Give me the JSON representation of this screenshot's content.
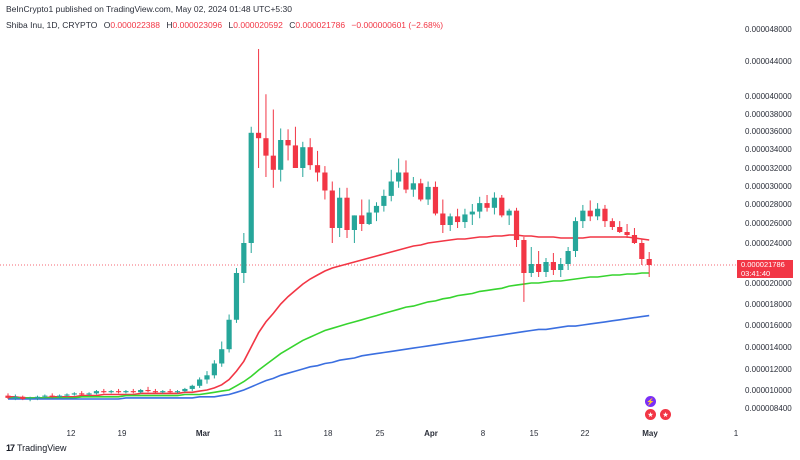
{
  "header": {
    "publisher": "BeInCrypto1 published on TradingView.com, May 02, 2024 01:48 UTC+5:30"
  },
  "symbol": {
    "name": "Shiba Inu, 1D, CRYPTO",
    "ohlc": {
      "o_label": "O",
      "o": "0.000022388",
      "h_label": "H",
      "h": "0.000023096",
      "l_label": "L",
      "l": "0.000020592",
      "c_label": "C",
      "c": "0.000021786",
      "change": "−0.000000601 (−2.68%)"
    }
  },
  "price_tag": {
    "price": "0.000021786",
    "countdown": "03:41:40"
  },
  "footer": {
    "brand": "TradingView"
  },
  "colors": {
    "up": "#26a69a",
    "down": "#f23645",
    "ma_red": "#f23645",
    "ma_green": "#37d42f",
    "ma_blue": "#3b6fe0"
  },
  "chart_data": {
    "type": "candlestick",
    "y_axis": {
      "labels": [
        "0.000048000",
        "0.000044000",
        "0.000040000",
        "0.000038000",
        "0.000036000",
        "0.000034000",
        "0.000032000",
        "0.000030000",
        "0.000028000",
        "0.000026000",
        "0.000024000",
        "0.000022000",
        "0.000020000",
        "0.000018000",
        "0.000016000",
        "0.000014000",
        "0.000012000",
        "0.000010000",
        "0.000008400"
      ]
    },
    "x_axis": {
      "labels": [
        {
          "text": "12",
          "bold": false
        },
        {
          "text": "19",
          "bold": false
        },
        {
          "text": "Mar",
          "bold": true
        },
        {
          "text": "11",
          "bold": false
        },
        {
          "text": "18",
          "bold": false
        },
        {
          "text": "25",
          "bold": false
        },
        {
          "text": "Apr",
          "bold": true
        },
        {
          "text": "8",
          "bold": false
        },
        {
          "text": "15",
          "bold": false
        },
        {
          "text": "22",
          "bold": false
        },
        {
          "text": "May",
          "bold": true
        },
        {
          "text": "1",
          "bold": false
        }
      ]
    },
    "candles": [
      {
        "o": 9.5e-06,
        "h": 9.7e-06,
        "l": 9.2e-06,
        "c": 9.3e-06
      },
      {
        "o": 9.3e-06,
        "h": 9.6e-06,
        "l": 9.1e-06,
        "c": 9.4e-06
      },
      {
        "o": 9.4e-06,
        "h": 9.5e-06,
        "l": 9.1e-06,
        "c": 9.2e-06
      },
      {
        "o": 9.2e-06,
        "h": 9.4e-06,
        "l": 9e-06,
        "c": 9.3e-06
      },
      {
        "o": 9.3e-06,
        "h": 9.5e-06,
        "l": 9.1e-06,
        "c": 9.4e-06
      },
      {
        "o": 9.4e-06,
        "h": 9.6e-06,
        "l": 9.2e-06,
        "c": 9.5e-06
      },
      {
        "o": 9.5e-06,
        "h": 9.7e-06,
        "l": 9.3e-06,
        "c": 9.4e-06
      },
      {
        "o": 9.4e-06,
        "h": 9.6e-06,
        "l": 9.3e-06,
        "c": 9.5e-06
      },
      {
        "o": 9.5e-06,
        "h": 9.7e-06,
        "l": 9.4e-06,
        "c": 9.6e-06
      },
      {
        "o": 9.6e-06,
        "h": 9.8e-06,
        "l": 9.5e-06,
        "c": 9.7e-06
      },
      {
        "o": 9.7e-06,
        "h": 9.9e-06,
        "l": 9.5e-06,
        "c": 9.6e-06
      },
      {
        "o": 9.6e-06,
        "h": 9.8e-06,
        "l": 9.5e-06,
        "c": 9.7e-06
      },
      {
        "o": 9.7e-06,
        "h": 1e-05,
        "l": 9.6e-06,
        "c": 9.9e-06
      },
      {
        "o": 9.9e-06,
        "h": 1.01e-05,
        "l": 9.7e-06,
        "c": 9.8e-06
      },
      {
        "o": 9.8e-06,
        "h": 1e-05,
        "l": 9.7e-06,
        "c": 9.9e-06
      },
      {
        "o": 9.9e-06,
        "h": 1.01e-05,
        "l": 9.7e-06,
        "c": 9.8e-06
      },
      {
        "o": 9.8e-06,
        "h": 1e-05,
        "l": 9.7e-06,
        "c": 9.9e-06
      },
      {
        "o": 9.9e-06,
        "h": 1.01e-05,
        "l": 9.7e-06,
        "c": 9.8e-06
      },
      {
        "o": 9.8e-06,
        "h": 1.01e-05,
        "l": 9.7e-06,
        "c": 1e-05
      },
      {
        "o": 1e-05,
        "h": 1.03e-05,
        "l": 9.8e-06,
        "c": 9.9e-06
      },
      {
        "o": 9.9e-06,
        "h": 1.01e-05,
        "l": 9.7e-06,
        "c": 9.8e-06
      },
      {
        "o": 9.8e-06,
        "h": 1e-05,
        "l": 9.7e-06,
        "c": 9.9e-06
      },
      {
        "o": 9.9e-06,
        "h": 1.01e-05,
        "l": 9.7e-06,
        "c": 9.8e-06
      },
      {
        "o": 9.8e-06,
        "h": 1e-05,
        "l": 9.7e-06,
        "c": 9.9e-06
      },
      {
        "o": 9.9e-06,
        "h": 1.02e-05,
        "l": 9.8e-06,
        "c": 1.01e-05
      },
      {
        "o": 1.01e-05,
        "h": 1.05e-05,
        "l": 9.9e-06,
        "c": 1.04e-05
      },
      {
        "o": 1.04e-05,
        "h": 1.12e-05,
        "l": 1.02e-05,
        "c": 1.1e-05
      },
      {
        "o": 1.1e-05,
        "h": 1.18e-05,
        "l": 1.06e-05,
        "c": 1.14e-05
      },
      {
        "o": 1.14e-05,
        "h": 1.28e-05,
        "l": 1.11e-05,
        "c": 1.25e-05
      },
      {
        "o": 1.25e-05,
        "h": 1.45e-05,
        "l": 1.22e-05,
        "c": 1.38e-05
      },
      {
        "o": 1.38e-05,
        "h": 1.7e-05,
        "l": 1.35e-05,
        "c": 1.65e-05
      },
      {
        "o": 1.65e-05,
        "h": 2.15e-05,
        "l": 1.62e-05,
        "c": 2.1e-05
      },
      {
        "o": 2.1e-05,
        "h": 2.5e-05,
        "l": 2e-05,
        "c": 2.4e-05
      },
      {
        "o": 2.4e-05,
        "h": 3.65e-05,
        "l": 2.3e-05,
        "c": 3.58e-05
      },
      {
        "o": 3.58e-05,
        "h": 4.55e-05,
        "l": 3.2e-05,
        "c": 3.52e-05
      },
      {
        "o": 3.52e-05,
        "h": 4.02e-05,
        "l": 3.1e-05,
        "c": 3.33e-05
      },
      {
        "o": 3.33e-05,
        "h": 3.85e-05,
        "l": 2.98e-05,
        "c": 3.18e-05
      },
      {
        "o": 3.18e-05,
        "h": 3.63e-05,
        "l": 3.05e-05,
        "c": 3.5e-05
      },
      {
        "o": 3.5e-05,
        "h": 3.62e-05,
        "l": 3.28e-05,
        "c": 3.44e-05
      },
      {
        "o": 3.44e-05,
        "h": 3.65e-05,
        "l": 3.2e-05,
        "c": 3.2e-05
      },
      {
        "o": 3.2e-05,
        "h": 3.48e-05,
        "l": 3.1e-05,
        "c": 3.42e-05
      },
      {
        "o": 3.42e-05,
        "h": 3.52e-05,
        "l": 3.18e-05,
        "c": 3.23e-05
      },
      {
        "o": 3.23e-05,
        "h": 3.38e-05,
        "l": 3.05e-05,
        "c": 3.15e-05
      },
      {
        "o": 3.15e-05,
        "h": 3.22e-05,
        "l": 2.85e-05,
        "c": 2.95e-05
      },
      {
        "o": 2.95e-05,
        "h": 3.05e-05,
        "l": 2.4e-05,
        "c": 2.55e-05
      },
      {
        "o": 2.55e-05,
        "h": 2.98e-05,
        "l": 2.46e-05,
        "c": 2.87e-05
      },
      {
        "o": 2.87e-05,
        "h": 2.98e-05,
        "l": 2.45e-05,
        "c": 2.53e-05
      },
      {
        "o": 2.53e-05,
        "h": 2.68e-05,
        "l": 2.4e-05,
        "c": 2.68e-05
      },
      {
        "o": 2.68e-05,
        "h": 2.85e-05,
        "l": 2.52e-05,
        "c": 2.59e-05
      },
      {
        "o": 2.59e-05,
        "h": 2.85e-05,
        "l": 2.58e-05,
        "c": 2.71e-05
      },
      {
        "o": 2.71e-05,
        "h": 2.82e-05,
        "l": 2.62e-05,
        "c": 2.78e-05
      },
      {
        "o": 2.78e-05,
        "h": 2.96e-05,
        "l": 2.72e-05,
        "c": 2.89e-05
      },
      {
        "o": 2.89e-05,
        "h": 3.18e-05,
        "l": 2.83e-05,
        "c": 3.05e-05
      },
      {
        "o": 3.05e-05,
        "h": 3.3e-05,
        "l": 2.98e-05,
        "c": 3.15e-05
      },
      {
        "o": 3.15e-05,
        "h": 3.28e-05,
        "l": 2.92e-05,
        "c": 2.96e-05
      },
      {
        "o": 2.96e-05,
        "h": 3.1e-05,
        "l": 2.88e-05,
        "c": 3.03e-05
      },
      {
        "o": 3.03e-05,
        "h": 3.08e-05,
        "l": 2.83e-05,
        "c": 2.85e-05
      },
      {
        "o": 2.85e-05,
        "h": 3.05e-05,
        "l": 2.79e-05,
        "c": 2.99e-05
      },
      {
        "o": 2.99e-05,
        "h": 3.05e-05,
        "l": 2.68e-05,
        "c": 2.7e-05
      },
      {
        "o": 2.7e-05,
        "h": 2.85e-05,
        "l": 2.5e-05,
        "c": 2.58e-05
      },
      {
        "o": 2.58e-05,
        "h": 2.7e-05,
        "l": 2.52e-05,
        "c": 2.67e-05
      },
      {
        "o": 2.67e-05,
        "h": 2.75e-05,
        "l": 2.55e-05,
        "c": 2.61e-05
      },
      {
        "o": 2.61e-05,
        "h": 2.75e-05,
        "l": 2.55e-05,
        "c": 2.69e-05
      },
      {
        "o": 2.69e-05,
        "h": 2.8e-05,
        "l": 2.58e-05,
        "c": 2.72e-05
      },
      {
        "o": 2.72e-05,
        "h": 2.88e-05,
        "l": 2.65e-05,
        "c": 2.81e-05
      },
      {
        "o": 2.81e-05,
        "h": 2.9e-05,
        "l": 2.72e-05,
        "c": 2.76e-05
      },
      {
        "o": 2.76e-05,
        "h": 2.93e-05,
        "l": 2.69e-05,
        "c": 2.87e-05
      },
      {
        "o": 2.87e-05,
        "h": 2.9e-05,
        "l": 2.66e-05,
        "c": 2.68e-05
      },
      {
        "o": 2.68e-05,
        "h": 2.75e-05,
        "l": 2.58e-05,
        "c": 2.73e-05
      },
      {
        "o": 2.73e-05,
        "h": 2.76e-05,
        "l": 2.36e-05,
        "c": 2.43e-05
      },
      {
        "o": 2.43e-05,
        "h": 2.46e-05,
        "l": 1.82e-05,
        "c": 2.1e-05
      },
      {
        "o": 2.1e-05,
        "h": 2.36e-05,
        "l": 2.06e-05,
        "c": 2.19e-05
      },
      {
        "o": 2.19e-05,
        "h": 2.32e-05,
        "l": 2.06e-05,
        "c": 2.11e-05
      },
      {
        "o": 2.11e-05,
        "h": 2.25e-05,
        "l": 2.06e-05,
        "c": 2.21e-05
      },
      {
        "o": 2.21e-05,
        "h": 2.3e-05,
        "l": 2.08e-05,
        "c": 2.13e-05
      },
      {
        "o": 2.13e-05,
        "h": 2.25e-05,
        "l": 2.06e-05,
        "c": 2.19e-05
      },
      {
        "o": 2.19e-05,
        "h": 2.36e-05,
        "l": 2.13e-05,
        "c": 2.32e-05
      },
      {
        "o": 2.32e-05,
        "h": 2.66e-05,
        "l": 2.26e-05,
        "c": 2.62e-05
      },
      {
        "o": 2.62e-05,
        "h": 2.79e-05,
        "l": 2.55e-05,
        "c": 2.73e-05
      },
      {
        "o": 2.73e-05,
        "h": 2.84e-05,
        "l": 2.62e-05,
        "c": 2.67e-05
      },
      {
        "o": 2.67e-05,
        "h": 2.81e-05,
        "l": 2.63e-05,
        "c": 2.75e-05
      },
      {
        "o": 2.75e-05,
        "h": 2.79e-05,
        "l": 2.56e-05,
        "c": 2.62e-05
      },
      {
        "o": 2.62e-05,
        "h": 2.65e-05,
        "l": 2.53e-05,
        "c": 2.56e-05
      },
      {
        "o": 2.56e-05,
        "h": 2.62e-05,
        "l": 2.5e-05,
        "c": 2.51e-05
      },
      {
        "o": 2.51e-05,
        "h": 2.59e-05,
        "l": 2.45e-05,
        "c": 2.48e-05
      },
      {
        "o": 2.48e-05,
        "h": 2.55e-05,
        "l": 2.39e-05,
        "c": 2.4e-05
      },
      {
        "o": 2.4e-05,
        "h": 2.44e-05,
        "l": 2.18e-05,
        "c": 2.24e-05
      },
      {
        "o": 2.24e-05,
        "h": 2.31e-05,
        "l": 2.06e-05,
        "c": 2.18e-05
      }
    ],
    "ma_series": [
      {
        "color_key": "ma_red",
        "values": [
          9.4e-06,
          9.4e-06,
          9.3e-06,
          9.3e-06,
          9.3e-06,
          9.3e-06,
          9.4e-06,
          9.4e-06,
          9.4e-06,
          9.4e-06,
          9.5e-06,
          9.5e-06,
          9.5e-06,
          9.6e-06,
          9.6e-06,
          9.6e-06,
          9.6e-06,
          9.6e-06,
          9.7e-06,
          9.7e-06,
          9.7e-06,
          9.7e-06,
          9.7e-06,
          9.7e-06,
          9.8e-06,
          9.8e-06,
          9.9e-06,
          1e-05,
          1.02e-05,
          1.05e-05,
          1.1e-05,
          1.18e-05,
          1.27e-05,
          1.4e-05,
          1.53e-05,
          1.63e-05,
          1.71e-05,
          1.8e-05,
          1.87e-05,
          1.93e-05,
          1.99e-05,
          2.04e-05,
          2.08e-05,
          2.12e-05,
          2.15e-05,
          2.17e-05,
          2.19e-05,
          2.21e-05,
          2.23e-05,
          2.25e-05,
          2.27e-05,
          2.29e-05,
          2.31e-05,
          2.33e-05,
          2.35e-05,
          2.37e-05,
          2.38e-05,
          2.4e-05,
          2.41e-05,
          2.42e-05,
          2.43e-05,
          2.44e-05,
          2.44e-05,
          2.45e-05,
          2.46e-05,
          2.46e-05,
          2.47e-05,
          2.47e-05,
          2.48e-05,
          2.48e-05,
          2.47e-05,
          2.47e-05,
          2.46e-05,
          2.46e-05,
          2.46e-05,
          2.45e-05,
          2.45e-05,
          2.45e-05,
          2.45e-05,
          2.46e-05,
          2.46e-05,
          2.46e-05,
          2.46e-05,
          2.46e-05,
          2.46e-05,
          2.45e-05,
          2.44e-05,
          2.43e-05
        ]
      },
      {
        "color_key": "ma_green",
        "values": [
          9.3e-06,
          9.3e-06,
          9.3e-06,
          9.3e-06,
          9.3e-06,
          9.3e-06,
          9.3e-06,
          9.3e-06,
          9.3e-06,
          9.3e-06,
          9.4e-06,
          9.4e-06,
          9.4e-06,
          9.4e-06,
          9.4e-06,
          9.4e-06,
          9.5e-06,
          9.5e-06,
          9.5e-06,
          9.5e-06,
          9.5e-06,
          9.5e-06,
          9.5e-06,
          9.5e-06,
          9.6e-06,
          9.6e-06,
          9.6e-06,
          9.7e-06,
          9.8e-06,
          9.9e-06,
          1e-05,
          1.04e-05,
          1.08e-05,
          1.13e-05,
          1.19e-05,
          1.24e-05,
          1.29e-05,
          1.34e-05,
          1.38e-05,
          1.42e-05,
          1.46e-05,
          1.49e-05,
          1.52e-05,
          1.55e-05,
          1.57e-05,
          1.59e-05,
          1.61e-05,
          1.63e-05,
          1.65e-05,
          1.67e-05,
          1.69e-05,
          1.71e-05,
          1.73e-05,
          1.75e-05,
          1.77e-05,
          1.78e-05,
          1.8e-05,
          1.82e-05,
          1.83e-05,
          1.85e-05,
          1.86e-05,
          1.88e-05,
          1.89e-05,
          1.9e-05,
          1.92e-05,
          1.93e-05,
          1.94e-05,
          1.95e-05,
          1.97e-05,
          1.98e-05,
          1.99e-05,
          2e-05,
          2e-05,
          2.01e-05,
          2.02e-05,
          2.02e-05,
          2.03e-05,
          2.04e-05,
          2.05e-05,
          2.06e-05,
          2.06e-05,
          2.07e-05,
          2.08e-05,
          2.08e-05,
          2.09e-05,
          2.09e-05,
          2.1e-05,
          2.1e-05
        ]
      },
      {
        "color_key": "ma_blue",
        "values": [
          9.2e-06,
          9.2e-06,
          9.2e-06,
          9.2e-06,
          9.2e-06,
          9.2e-06,
          9.2e-06,
          9.2e-06,
          9.2e-06,
          9.2e-06,
          9.2e-06,
          9.2e-06,
          9.2e-06,
          9.2e-06,
          9.2e-06,
          9.2e-06,
          9.3e-06,
          9.3e-06,
          9.3e-06,
          9.3e-06,
          9.3e-06,
          9.3e-06,
          9.3e-06,
          9.3e-06,
          9.3e-06,
          9.3e-06,
          9.4e-06,
          9.4e-06,
          9.4e-06,
          9.5e-06,
          9.6e-06,
          9.8e-06,
          1e-05,
          1.03e-05,
          1.06e-05,
          1.09e-05,
          1.11e-05,
          1.14e-05,
          1.16e-05,
          1.18e-05,
          1.2e-05,
          1.22e-05,
          1.23e-05,
          1.25e-05,
          1.26e-05,
          1.28e-05,
          1.29e-05,
          1.3e-05,
          1.32e-05,
          1.33e-05,
          1.34e-05,
          1.35e-05,
          1.36e-05,
          1.37e-05,
          1.38e-05,
          1.39e-05,
          1.4e-05,
          1.41e-05,
          1.42e-05,
          1.43e-05,
          1.44e-05,
          1.45e-05,
          1.46e-05,
          1.47e-05,
          1.48e-05,
          1.49e-05,
          1.5e-05,
          1.51e-05,
          1.52e-05,
          1.53e-05,
          1.54e-05,
          1.55e-05,
          1.56e-05,
          1.56e-05,
          1.57e-05,
          1.58e-05,
          1.59e-05,
          1.59e-05,
          1.6e-05,
          1.61e-05,
          1.62e-05,
          1.63e-05,
          1.64e-05,
          1.65e-05,
          1.66e-05,
          1.67e-05,
          1.68e-05,
          1.69e-05
        ]
      }
    ]
  }
}
